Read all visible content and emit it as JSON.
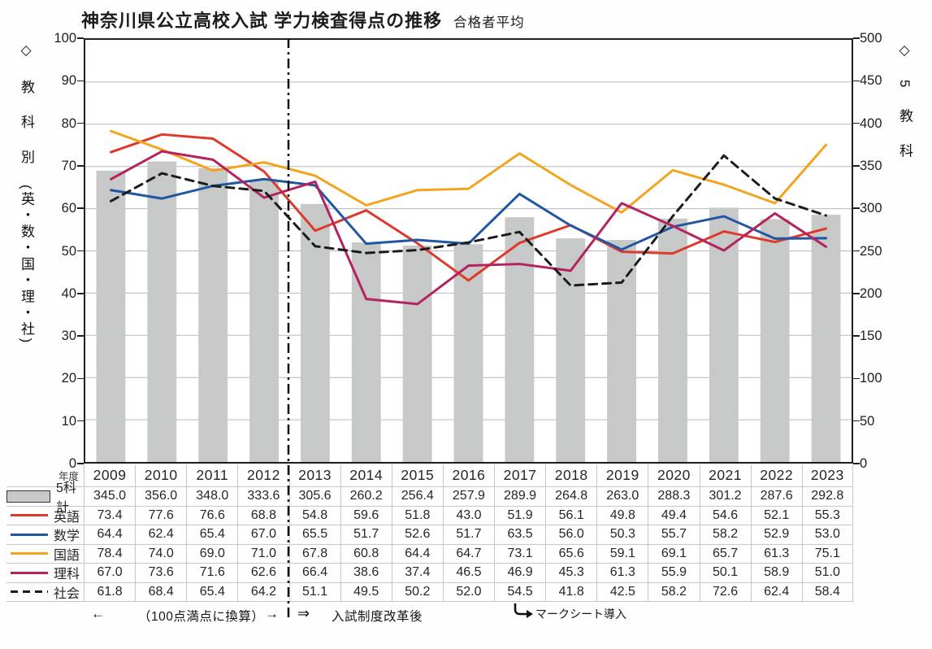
{
  "title": {
    "main": "神奈川県公立高校入試 学力検査得点の推移",
    "sub": "合格者平均"
  },
  "axes": {
    "left": {
      "label_head": "◇教科別",
      "label_tail": "(英・数・国・理・社)",
      "ticks": [
        100,
        90,
        80,
        70,
        60,
        50,
        40,
        30,
        20,
        10,
        0
      ],
      "max": 100
    },
    "right": {
      "label": "◇5教科",
      "ticks": [
        500,
        450,
        400,
        350,
        300,
        250,
        200,
        150,
        100,
        50,
        0
      ],
      "max": 500
    }
  },
  "chart_data": {
    "type": "bar+line combo",
    "categories": [
      "2009",
      "2010",
      "2011",
      "2012",
      "2013",
      "2014",
      "2015",
      "2016",
      "2017",
      "2018",
      "2019",
      "2020",
      "2021",
      "2022",
      "2023"
    ],
    "bar_series": {
      "id": "total5",
      "name": "5科計",
      "axis": "right",
      "color": "#c6c9c8",
      "values": [
        345.0,
        356.0,
        348.0,
        333.6,
        305.6,
        260.2,
        256.4,
        257.9,
        289.9,
        264.8,
        263.0,
        288.3,
        301.2,
        287.6,
        292.8
      ]
    },
    "line_series": [
      {
        "id": "english",
        "name": "英語",
        "color": "#dd3a2c",
        "dashed": false,
        "values": [
          73.4,
          77.6,
          76.6,
          68.8,
          54.8,
          59.6,
          51.8,
          43.0,
          51.9,
          56.1,
          49.8,
          49.4,
          54.6,
          52.1,
          55.3
        ]
      },
      {
        "id": "math",
        "name": "数学",
        "color": "#2156a2",
        "dashed": false,
        "values": [
          64.4,
          62.4,
          65.4,
          67.0,
          65.5,
          51.7,
          52.6,
          51.7,
          63.5,
          56.0,
          50.3,
          55.7,
          58.2,
          52.9,
          53.0
        ]
      },
      {
        "id": "japanese",
        "name": "国語",
        "color": "#f4a31d",
        "dashed": false,
        "values": [
          78.4,
          74.0,
          69.0,
          71.0,
          67.8,
          60.8,
          64.4,
          64.7,
          73.1,
          65.6,
          59.1,
          69.1,
          65.7,
          61.3,
          75.1
        ]
      },
      {
        "id": "science",
        "name": "理科",
        "color": "#b5235f",
        "dashed": false,
        "values": [
          67.0,
          73.6,
          71.6,
          62.6,
          66.4,
          38.6,
          37.4,
          46.5,
          46.9,
          45.3,
          61.3,
          55.9,
          50.1,
          58.9,
          51.0
        ]
      },
      {
        "id": "social",
        "name": "社会",
        "color": "#1b1b1b",
        "dashed": true,
        "values": [
          61.8,
          68.4,
          65.4,
          64.2,
          51.1,
          49.5,
          50.2,
          52.0,
          54.5,
          41.8,
          42.5,
          58.2,
          72.6,
          62.4,
          58.4
        ]
      }
    ],
    "left_ylim": [
      0,
      100
    ],
    "right_ylim": [
      0,
      500
    ],
    "grid": true,
    "legend_position": "table-left-column",
    "divider_after_category": "2012"
  },
  "table": {
    "corner_label": "年度"
  },
  "notes": {
    "left_arrow": "←",
    "conversion": "（100点満点に換算）",
    "right_arrow": "→",
    "reform_arrow": "⇒",
    "reform": "入試制度改革後",
    "marksheet": "マークシート導入"
  },
  "colors": {
    "grid": "#b5bab9",
    "plot_border": "#1f1f1f",
    "divider": "#111111",
    "table_border": "#c6c6c6"
  }
}
